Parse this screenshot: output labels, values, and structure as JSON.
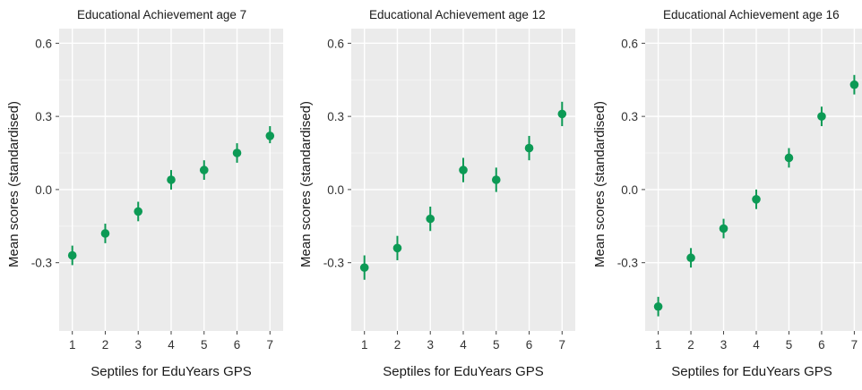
{
  "chart_data": [
    {
      "type": "scatter",
      "title": "Educational Achievement age 7",
      "xlabel": "Septiles for EduYears GPS",
      "ylabel": "Mean scores (standardised)",
      "x": [
        1,
        2,
        3,
        4,
        5,
        6,
        7
      ],
      "y": [
        -0.27,
        -0.18,
        -0.09,
        0.04,
        0.08,
        0.15,
        0.22
      ],
      "y_lower": [
        -0.31,
        -0.22,
        -0.13,
        0.0,
        0.04,
        0.11,
        0.19
      ],
      "y_upper": [
        -0.23,
        -0.14,
        -0.05,
        0.08,
        0.12,
        0.19,
        0.26
      ],
      "xticks": [
        "1",
        "2",
        "3",
        "4",
        "5",
        "6",
        "7"
      ],
      "yticks": [
        -0.3,
        0.0,
        0.3,
        0.6
      ],
      "ytick_labels": [
        "-0.3",
        "0.0",
        "0.3",
        "0.6"
      ],
      "xlim": [
        0.6,
        7.4
      ],
      "ylim": [
        -0.58,
        0.66
      ],
      "grid": true,
      "color": "#0c9a55"
    },
    {
      "type": "scatter",
      "title": "Educational Achievement age 12",
      "xlabel": "Septiles for EduYears GPS",
      "ylabel": "Mean scores (standardised)",
      "x": [
        1,
        2,
        3,
        4,
        5,
        6,
        7
      ],
      "y": [
        -0.32,
        -0.24,
        -0.12,
        0.08,
        0.04,
        0.17,
        0.31
      ],
      "y_lower": [
        -0.37,
        -0.29,
        -0.17,
        0.03,
        -0.01,
        0.12,
        0.26
      ],
      "y_upper": [
        -0.27,
        -0.19,
        -0.07,
        0.13,
        0.09,
        0.22,
        0.36
      ],
      "xticks": [
        "1",
        "2",
        "3",
        "4",
        "5",
        "6",
        "7"
      ],
      "yticks": [
        -0.3,
        0.0,
        0.3,
        0.6
      ],
      "ytick_labels": [
        "-0.3",
        "0.0",
        "0.3",
        "0.6"
      ],
      "xlim": [
        0.6,
        7.4
      ],
      "ylim": [
        -0.58,
        0.66
      ],
      "grid": true,
      "color": "#0c9a55"
    },
    {
      "type": "scatter",
      "title": "Educational Achievement age 16",
      "xlabel": "Septiles for EduYears GPS",
      "ylabel": "Mean scores (standardised)",
      "x": [
        1,
        2,
        3,
        4,
        5,
        6,
        7
      ],
      "y": [
        -0.48,
        -0.28,
        -0.16,
        -0.04,
        0.13,
        0.3,
        0.43
      ],
      "y_lower": [
        -0.52,
        -0.32,
        -0.2,
        -0.08,
        0.09,
        0.26,
        0.39
      ],
      "y_upper": [
        -0.44,
        -0.24,
        -0.12,
        0.0,
        0.17,
        0.34,
        0.47
      ],
      "xticks": [
        "1",
        "2",
        "3",
        "4",
        "5",
        "6",
        "7"
      ],
      "yticks": [
        -0.3,
        0.0,
        0.3,
        0.6
      ],
      "ytick_labels": [
        "-0.3",
        "0.0",
        "0.3",
        "0.6"
      ],
      "xlim": [
        0.6,
        7.4
      ],
      "ylim": [
        -0.58,
        0.66
      ],
      "grid": true,
      "color": "#0c9a55"
    }
  ]
}
